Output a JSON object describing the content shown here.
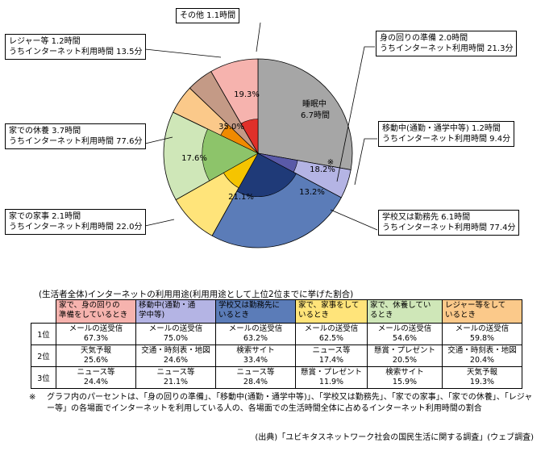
{
  "chart_data": {
    "type": "pie",
    "unit": "時間",
    "slices": [
      {
        "key": "sleep",
        "label": "睡眠中",
        "hours": 6.7,
        "color": "#a6a6a6",
        "time_label": "6.7時間"
      },
      {
        "key": "moving",
        "label": "移動中(通勤・通学中等)",
        "hours": 1.2,
        "color": "#b4b4e4",
        "time_label": "1.2時間",
        "internet_minutes": "9.4分",
        "inner_percent": 18.2,
        "inner_color": "#5a5aa8"
      },
      {
        "key": "school_work",
        "label": "学校又は勤務先",
        "hours": 6.1,
        "color": "#5b7cb8",
        "time_label": "6.1時間",
        "internet_minutes": "77.4分",
        "inner_percent": 21.1,
        "inner_color": "#1f3a78"
      },
      {
        "key": "housework",
        "label": "家での家事",
        "hours": 2.1,
        "color": "#ffe47a",
        "time_label": "2.1時間",
        "internet_minutes": "22.0分",
        "inner_percent": 17.6,
        "inner_color": "#f5c400"
      },
      {
        "key": "rest",
        "label": "家での休養",
        "hours": 3.7,
        "color": "#cfe7b8",
        "time_label": "3.7時間",
        "internet_minutes": "77.6分",
        "inner_percent": 35.0,
        "inner_color": "#8dc46a"
      },
      {
        "key": "leisure",
        "label": "レジャー等",
        "hours": 1.2,
        "color": "#fbc98a",
        "time_label": "1.2時間",
        "internet_minutes": "13.5分",
        "inner_percent": 19.3,
        "inner_color": "#f08a00"
      },
      {
        "key": "other",
        "label": "その他",
        "hours": 1.1,
        "color": "#c49a86",
        "time_label": "1.1時間"
      },
      {
        "key": "personal",
        "label": "身の回りの準備",
        "hours": 2.0,
        "color": "#f6b3ae",
        "time_label": "2.0時間",
        "internet_minutes": "21.3分",
        "inner_percent": 13.2,
        "inner_color": "#e0302a"
      }
    ],
    "inner_suffix": "%",
    "internet_prefix": "うちインターネット利用時間",
    "asterisk_mark": "※"
  },
  "callouts": {
    "other": "その他  1.1時間",
    "leisure_line1": "レジャー等  1.2時間",
    "leisure_line2": "うちインターネット利用時間  13.5分",
    "rest_line1": "家での休養  3.7時間",
    "rest_line2": "うちインターネット利用時間  77.6分",
    "housework_line1": "家での家事  2.1時間",
    "housework_line2": "うちインターネット利用時間  22.0分",
    "personal_line1": "身の回りの準備  2.0時間",
    "personal_line2": "うちインターネット利用時間  21.3分",
    "moving_line1": "移動中(通勤・通学中等)  1.2時間",
    "moving_line2": "うちインターネット利用時間  9.4分",
    "school_line1": "学校又は勤務先  6.1時間",
    "school_line2": "うちインターネット利用時間  77.4分",
    "sleep_line1": "睡眠中",
    "sleep_line2": "6.7時間"
  },
  "usage_table": {
    "title": "(生活者全体)インターネットの利用用途(利用用途として上位2位までに挙げた割合)",
    "headers": [
      {
        "line1": "家で、身の回りの",
        "line2": "準備をしているとき",
        "color": "#f6b3ae"
      },
      {
        "line1": "移動中(通勤・通",
        "line2": "学中等)",
        "color": "#b4b4e4"
      },
      {
        "line1": "学校又は勤務先に",
        "line2": "いるとき",
        "color": "#5b7cb8"
      },
      {
        "line1": "家で、家事をして",
        "line2": "いるとき",
        "color": "#ffe47a"
      },
      {
        "line1": "家で、休養してい",
        "line2": "るとき",
        "color": "#cfe7b8"
      },
      {
        "line1": "レジャー等をして",
        "line2": "いるとき",
        "color": "#fbc98a"
      }
    ],
    "rows": [
      {
        "rank": "1位",
        "cells": [
          {
            "item": "メールの送受信",
            "pct": "67.3%"
          },
          {
            "item": "メールの送受信",
            "pct": "75.0%"
          },
          {
            "item": "メールの送受信",
            "pct": "63.2%"
          },
          {
            "item": "メールの送受信",
            "pct": "62.5%"
          },
          {
            "item": "メールの送受信",
            "pct": "54.6%"
          },
          {
            "item": "メールの送受信",
            "pct": "59.8%"
          }
        ]
      },
      {
        "rank": "2位",
        "cells": [
          {
            "item": "天気予報",
            "pct": "25.6%"
          },
          {
            "item": "交通・時刻表・地図",
            "pct": "24.6%"
          },
          {
            "item": "検索サイト",
            "pct": "33.4%"
          },
          {
            "item": "ニュース等",
            "pct": "17.4%"
          },
          {
            "item": "懸賞・プレゼント",
            "pct": "20.5%"
          },
          {
            "item": "交通・時刻表・地図",
            "pct": "20.4%"
          }
        ]
      },
      {
        "rank": "3位",
        "cells": [
          {
            "item": "ニュース等",
            "pct": "24.4%"
          },
          {
            "item": "ニュース等",
            "pct": "21.1%"
          },
          {
            "item": "ニュース等",
            "pct": "28.4%"
          },
          {
            "item": "懸賞・プレゼント",
            "pct": "11.9%"
          },
          {
            "item": "検索サイト",
            "pct": "15.9%"
          },
          {
            "item": "天気予報",
            "pct": "19.3%"
          }
        ]
      }
    ]
  },
  "footnote": {
    "mark": "※",
    "text": "グラフ内のパーセントは、「身の回りの準備」、「移動中(通勤・通学中等)」、「学校又は勤務先」、「家での家事」、「家での休養」、「レジャー等」の各場面でインターネットを利用している人の、各場面での生活時間全体に占めるインターネット利用時間の割合"
  },
  "source": "(出典)「ユビキタスネットワーク社会の国民生活に関する調査」(ウェブ調査)"
}
